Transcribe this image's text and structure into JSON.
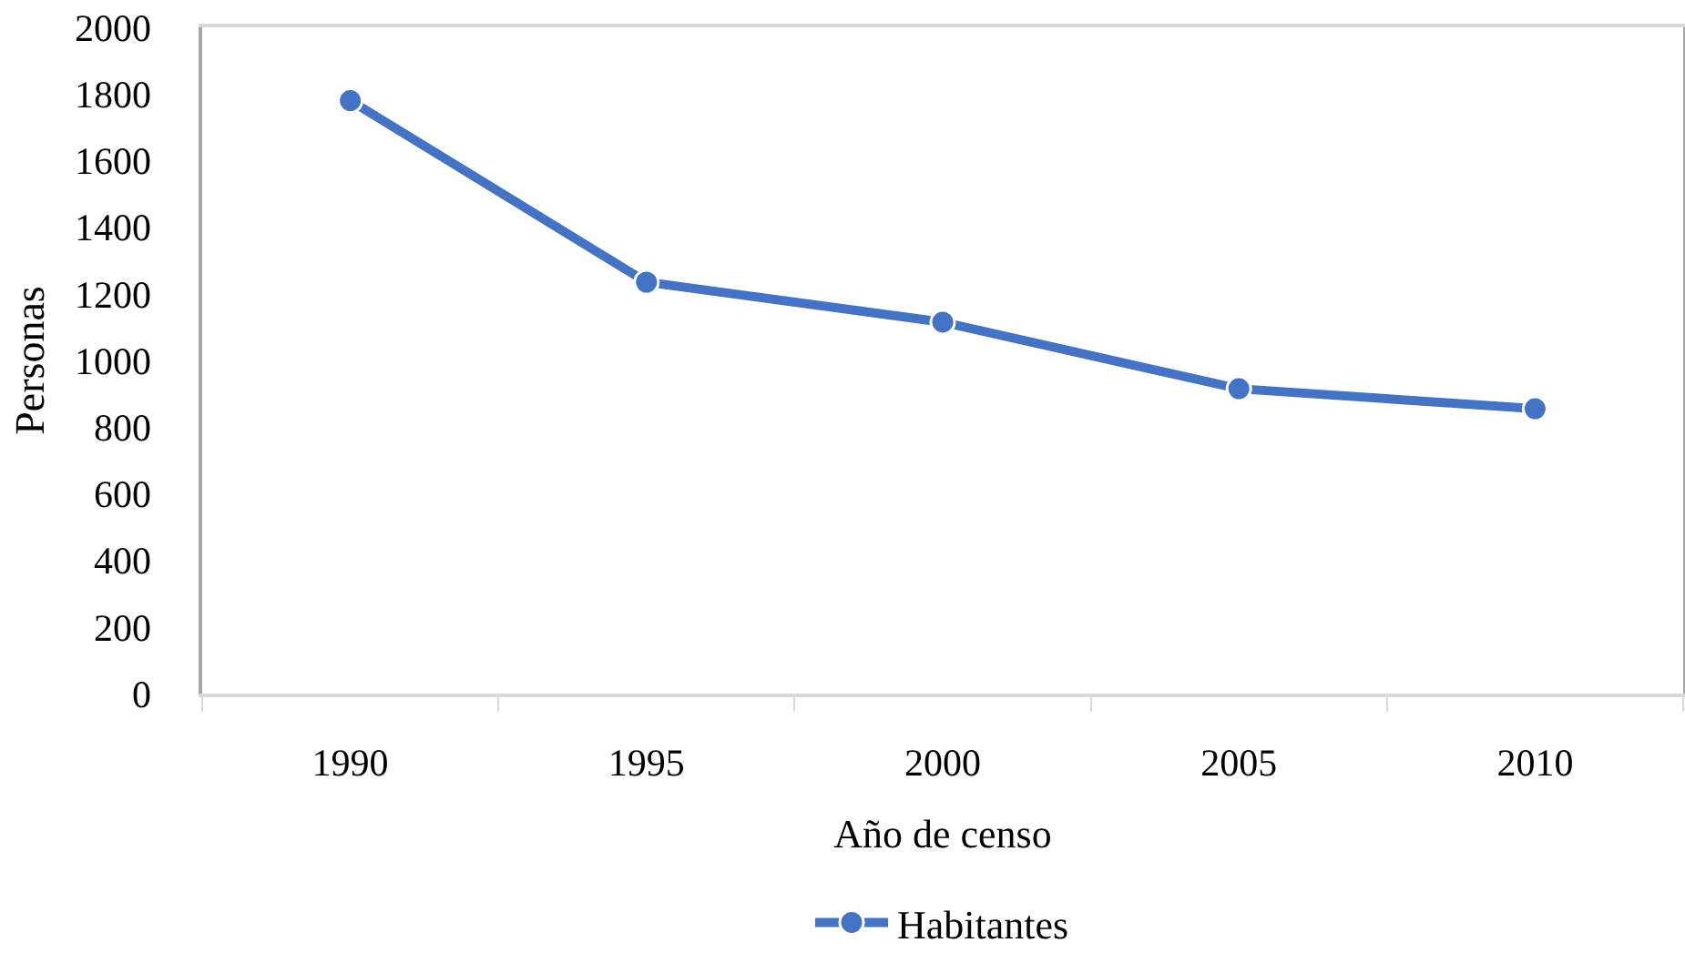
{
  "chart_data": {
    "type": "line",
    "xlabel": "Año de censo",
    "ylabel": "Personas",
    "categories": [
      "1990",
      "1995",
      "2000",
      "2005",
      "2010"
    ],
    "series": [
      {
        "name": "Habitantes",
        "color": "#4472c4",
        "values": [
          1780,
          1235,
          1115,
          915,
          855
        ]
      }
    ],
    "ylim": [
      0,
      2000
    ],
    "yticks": [
      0,
      200,
      400,
      600,
      800,
      1000,
      1200,
      1400,
      1600,
      1800,
      2000
    ],
    "legend": "bottom",
    "marker": "circle",
    "line_style": "solid"
  }
}
